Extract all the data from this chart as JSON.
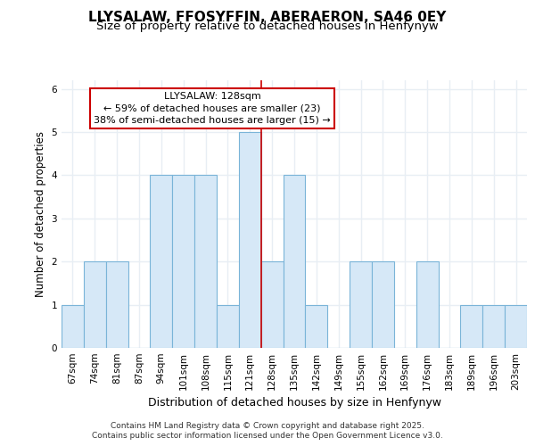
{
  "title": "LLYSALAW, FFOSYFFIN, ABERAERON, SA46 0EY",
  "subtitle": "Size of property relative to detached houses in Henfynyw",
  "xlabel": "Distribution of detached houses by size in Henfynyw",
  "ylabel": "Number of detached properties",
  "categories": [
    "67sqm",
    "74sqm",
    "81sqm",
    "87sqm",
    "94sqm",
    "101sqm",
    "108sqm",
    "115sqm",
    "121sqm",
    "128sqm",
    "135sqm",
    "142sqm",
    "149sqm",
    "155sqm",
    "162sqm",
    "169sqm",
    "176sqm",
    "183sqm",
    "189sqm",
    "196sqm",
    "203sqm"
  ],
  "values": [
    1,
    2,
    2,
    0,
    4,
    4,
    4,
    1,
    5,
    2,
    4,
    1,
    0,
    2,
    2,
    0,
    2,
    0,
    1,
    1,
    1
  ],
  "bar_color": "#d6e8f7",
  "bar_edge_color": "#7ab4d8",
  "vline_index": 8.5,
  "vline_color": "#cc0000",
  "annotation_title": "LLYSALAW: 128sqm",
  "annotation_line1": "← 59% of detached houses are smaller (23)",
  "annotation_line2": "38% of semi-detached houses are larger (15) →",
  "annotation_box_facecolor": "#ffffff",
  "annotation_box_edgecolor": "#cc0000",
  "ylim": [
    0,
    6.2
  ],
  "yticks": [
    0,
    1,
    2,
    3,
    4,
    5,
    6
  ],
  "background_color": "#ffffff",
  "plot_bg_color": "#ffffff",
  "grid_color": "#e8eef4",
  "footer_line1": "Contains HM Land Registry data © Crown copyright and database right 2025.",
  "footer_line2": "Contains public sector information licensed under the Open Government Licence v3.0.",
  "title_fontsize": 11,
  "subtitle_fontsize": 9.5,
  "xlabel_fontsize": 9,
  "ylabel_fontsize": 8.5,
  "tick_fontsize": 7.5,
  "annotation_fontsize": 8,
  "footer_fontsize": 6.5
}
